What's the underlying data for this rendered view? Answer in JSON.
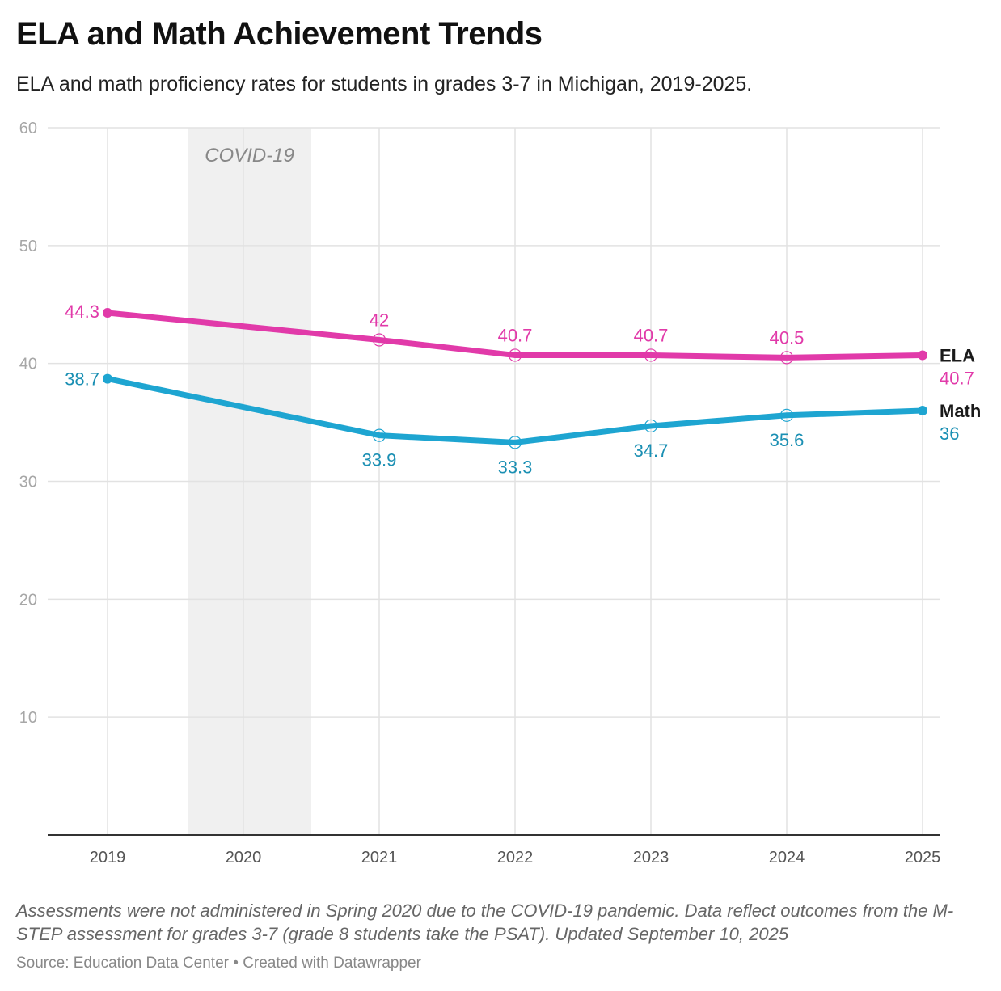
{
  "title": "ELA and Math Achievement Trends",
  "subtitle": "ELA and math proficiency rates for students in grades 3-7 in Michigan, 2019-2025.",
  "notes": "Assessments were not administered in Spring 2020 due to the COVID-19 pandemic. Data reflect outcomes from the M-STEP assessment for grades 3-7 (grade 8 students take the PSAT). Updated September 10, 2025",
  "source": "Source: Education Data Center • Created with Datawrapper",
  "chart_data": {
    "type": "line",
    "title": "ELA and Math Achievement Trends",
    "xlabel": "",
    "ylabel": "",
    "categories": [
      "2019",
      "2020",
      "2021",
      "2022",
      "2023",
      "2024",
      "2025"
    ],
    "x": [
      2019,
      2020,
      2021,
      2022,
      2023,
      2024,
      2025
    ],
    "ylim": [
      0,
      60
    ],
    "y_ticks": [
      10,
      20,
      30,
      40,
      50,
      60
    ],
    "grid": true,
    "shaded_band": {
      "label": "COVID-19",
      "x_start": 2019.59,
      "x_end": 2020.5
    },
    "series": [
      {
        "name": "ELA",
        "color": "#e13aa9",
        "label_color": "#e13aa9",
        "points": [
          [
            2019,
            44.3
          ],
          [
            2021,
            42
          ],
          [
            2022,
            40.7
          ],
          [
            2023,
            40.7
          ],
          [
            2024,
            40.5
          ],
          [
            2025,
            40.7
          ]
        ],
        "labels": [
          "44.3",
          "42",
          "40.7",
          "40.7",
          "40.5",
          "40.7"
        ],
        "end_label": "ELA"
      },
      {
        "name": "Math",
        "color": "#1ea5d1",
        "label_color": "#1a8fb3",
        "points": [
          [
            2019,
            38.7
          ],
          [
            2021,
            33.9
          ],
          [
            2022,
            33.3
          ],
          [
            2023,
            34.7
          ],
          [
            2024,
            35.6
          ],
          [
            2025,
            36
          ]
        ],
        "labels": [
          "38.7",
          "33.9",
          "33.3",
          "34.7",
          "35.6",
          "36"
        ],
        "end_label": "Math"
      }
    ]
  }
}
